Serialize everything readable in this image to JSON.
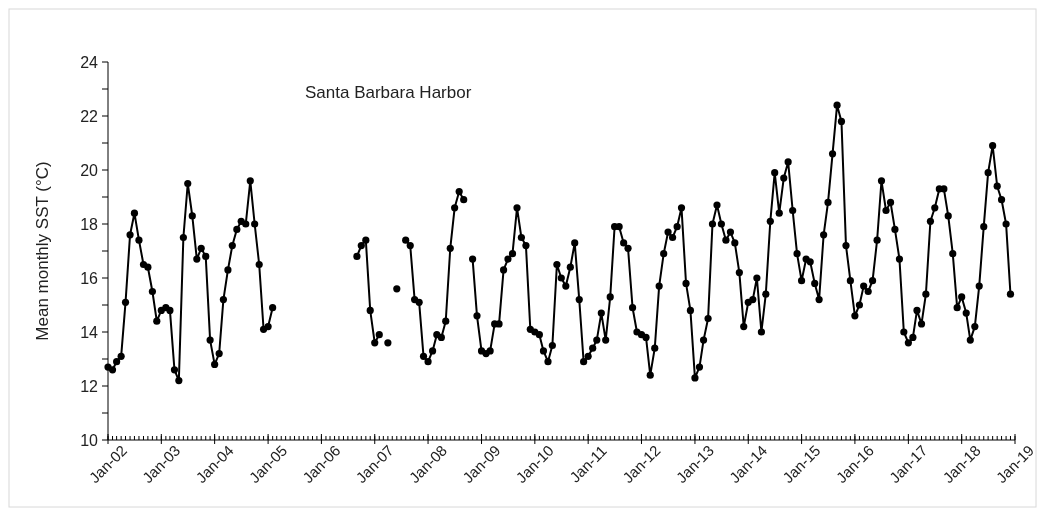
{
  "chart_data": {
    "type": "line",
    "title": "Santa Barbara Harbor",
    "ylabel": "Mean monthly SST (°C)",
    "marker": "circle",
    "line_style": "solid",
    "grid": false,
    "xlim": [
      "2002-01",
      "2019-01"
    ],
    "xticks": [
      {
        "value": "2002-01",
        "label": "Jan-02"
      },
      {
        "value": "2003-01",
        "label": "Jan-03"
      },
      {
        "value": "2004-01",
        "label": "Jan-04"
      },
      {
        "value": "2005-01",
        "label": "Jan-05"
      },
      {
        "value": "2006-01",
        "label": "Jan-06"
      },
      {
        "value": "2007-01",
        "label": "Jan-07"
      },
      {
        "value": "2008-01",
        "label": "Jan-08"
      },
      {
        "value": "2009-01",
        "label": "Jan-09"
      },
      {
        "value": "2010-01",
        "label": "Jan-10"
      },
      {
        "value": "2011-01",
        "label": "Jan-11"
      },
      {
        "value": "2012-01",
        "label": "Jan-12"
      },
      {
        "value": "2013-01",
        "label": "Jan-13"
      },
      {
        "value": "2014-01",
        "label": "Jan-14"
      },
      {
        "value": "2015-01",
        "label": "Jan-15"
      },
      {
        "value": "2016-01",
        "label": "Jan-16"
      },
      {
        "value": "2017-01",
        "label": "Jan-17"
      },
      {
        "value": "2018-01",
        "label": "Jan-18"
      },
      {
        "value": "2019-01",
        "label": "Jan-19"
      }
    ],
    "ylim": [
      10,
      24
    ],
    "yticks": [
      10,
      {
        "value": 11,
        "label": null
      },
      12,
      {
        "value": 13,
        "label": null
      },
      14,
      {
        "value": 15,
        "label": null
      },
      16,
      {
        "value": 17,
        "label": null
      },
      18,
      {
        "value": 19,
        "label": null
      },
      20,
      {
        "value": 21,
        "label": null
      },
      22,
      {
        "value": 23,
        "label": null
      },
      24
    ],
    "x": [
      "2002-01",
      "2002-02",
      "2002-03",
      "2002-04",
      "2002-05",
      "2002-06",
      "2002-07",
      "2002-08",
      "2002-09",
      "2002-10",
      "2002-11",
      "2002-12",
      "2003-01",
      "2003-02",
      "2003-03",
      "2003-04",
      "2003-05",
      "2003-06",
      "2003-07",
      "2003-08",
      "2003-09",
      "2003-10",
      "2003-11",
      "2003-12",
      "2004-01",
      "2004-02",
      "2004-03",
      "2004-04",
      "2004-05",
      "2004-06",
      "2004-07",
      "2004-08",
      "2004-09",
      "2004-10",
      "2004-11",
      "2004-12",
      "2005-01",
      "2005-02",
      "2005-03",
      "2005-04",
      "2005-05",
      "2005-06",
      "2005-07",
      "2005-08",
      "2005-09",
      "2005-10",
      "2005-11",
      "2005-12",
      "2006-01",
      "2006-02",
      "2006-03",
      "2006-04",
      "2006-05",
      "2006-06",
      "2006-07",
      "2006-08",
      "2006-09",
      "2006-10",
      "2006-11",
      "2006-12",
      "2007-01",
      "2007-02",
      "2007-03",
      "2007-04",
      "2007-05",
      "2007-06",
      "2007-07",
      "2007-08",
      "2007-09",
      "2007-10",
      "2007-11",
      "2007-12",
      "2008-01",
      "2008-02",
      "2008-03",
      "2008-04",
      "2008-05",
      "2008-06",
      "2008-07",
      "2008-08",
      "2008-09",
      "2008-10",
      "2008-11",
      "2008-12",
      "2009-01",
      "2009-02",
      "2009-03",
      "2009-04",
      "2009-05",
      "2009-06",
      "2009-07",
      "2009-08",
      "2009-09",
      "2009-10",
      "2009-11",
      "2009-12",
      "2010-01",
      "2010-02",
      "2010-03",
      "2010-04",
      "2010-05",
      "2010-06",
      "2010-07",
      "2010-08",
      "2010-09",
      "2010-10",
      "2010-11",
      "2010-12",
      "2011-01",
      "2011-02",
      "2011-03",
      "2011-04",
      "2011-05",
      "2011-06",
      "2011-07",
      "2011-08",
      "2011-09",
      "2011-10",
      "2011-11",
      "2011-12",
      "2012-01",
      "2012-02",
      "2012-03",
      "2012-04",
      "2012-05",
      "2012-06",
      "2012-07",
      "2012-08",
      "2012-09",
      "2012-10",
      "2012-11",
      "2012-12",
      "2013-01",
      "2013-02",
      "2013-03",
      "2013-04",
      "2013-05",
      "2013-06",
      "2013-07",
      "2013-08",
      "2013-09",
      "2013-10",
      "2013-11",
      "2013-12",
      "2014-01",
      "2014-02",
      "2014-03",
      "2014-04",
      "2014-05",
      "2014-06",
      "2014-07",
      "2014-08",
      "2014-09",
      "2014-10",
      "2014-11",
      "2014-12",
      "2015-01",
      "2015-02",
      "2015-03",
      "2015-04",
      "2015-05",
      "2015-06",
      "2015-07",
      "2015-08",
      "2015-09",
      "2015-10",
      "2015-11",
      "2015-12",
      "2016-01",
      "2016-02",
      "2016-03",
      "2016-04",
      "2016-05",
      "2016-06",
      "2016-07",
      "2016-08",
      "2016-09",
      "2016-10",
      "2016-11",
      "2016-12",
      "2017-01",
      "2017-02",
      "2017-03",
      "2017-04",
      "2017-05",
      "2017-06",
      "2017-07",
      "2017-08",
      "2017-09",
      "2017-10",
      "2017-11",
      "2017-12",
      "2018-01",
      "2018-02",
      "2018-03",
      "2018-04",
      "2018-05",
      "2018-06",
      "2018-07",
      "2018-08",
      "2018-09",
      "2018-10",
      "2018-11",
      "2018-12"
    ],
    "series": [
      {
        "color": "#000000",
        "values": [
          12.7,
          12.6,
          12.9,
          13.1,
          15.1,
          17.6,
          18.4,
          17.4,
          16.5,
          16.4,
          15.5,
          14.4,
          14.8,
          14.9,
          14.8,
          12.6,
          12.2,
          17.5,
          19.5,
          18.3,
          16.7,
          17.1,
          16.8,
          13.7,
          12.8,
          13.2,
          15.2,
          16.3,
          17.2,
          17.8,
          18.1,
          18.0,
          19.6,
          18.0,
          16.5,
          14.1,
          14.2,
          14.9,
          null,
          null,
          null,
          null,
          null,
          null,
          null,
          null,
          null,
          null,
          null,
          null,
          null,
          null,
          null,
          null,
          null,
          null,
          16.8,
          17.2,
          17.4,
          14.8,
          13.6,
          13.9,
          null,
          13.6,
          null,
          15.6,
          null,
          17.4,
          17.2,
          15.2,
          15.1,
          13.1,
          12.9,
          13.3,
          13.9,
          13.8,
          14.4,
          17.1,
          18.6,
          19.2,
          18.9,
          null,
          16.7,
          14.6,
          13.3,
          13.2,
          13.3,
          14.3,
          14.3,
          16.3,
          16.7,
          16.9,
          18.6,
          17.5,
          17.2,
          14.1,
          14.0,
          13.9,
          13.3,
          12.9,
          13.5,
          16.5,
          16.0,
          15.7,
          16.4,
          17.3,
          15.2,
          12.9,
          13.1,
          13.4,
          13.7,
          14.7,
          13.7,
          15.3,
          17.9,
          17.9,
          17.3,
          17.1,
          14.9,
          14.0,
          13.9,
          13.8,
          12.4,
          13.4,
          15.7,
          16.9,
          17.7,
          17.5,
          17.9,
          18.6,
          15.8,
          14.8,
          12.3,
          12.7,
          13.7,
          14.5,
          18.0,
          18.7,
          18.0,
          17.4,
          17.7,
          17.3,
          16.2,
          14.2,
          15.1,
          15.2,
          16.0,
          14.0,
          15.4,
          18.1,
          19.9,
          18.4,
          19.7,
          20.3,
          18.5,
          16.9,
          15.9,
          16.7,
          16.6,
          15.8,
          15.2,
          17.6,
          18.8,
          20.6,
          22.4,
          21.8,
          17.2,
          15.9,
          14.6,
          15.0,
          15.7,
          15.5,
          15.9,
          17.4,
          19.6,
          18.5,
          18.8,
          17.8,
          16.7,
          14.0,
          13.6,
          13.8,
          14.8,
          14.3,
          15.4,
          18.1,
          18.6,
          19.3,
          19.3,
          18.3,
          16.9,
          14.9,
          15.3,
          14.7,
          13.7,
          14.2,
          15.7,
          17.9,
          19.9,
          20.9,
          19.4,
          18.9,
          18.0,
          15.4
        ]
      }
    ]
  }
}
